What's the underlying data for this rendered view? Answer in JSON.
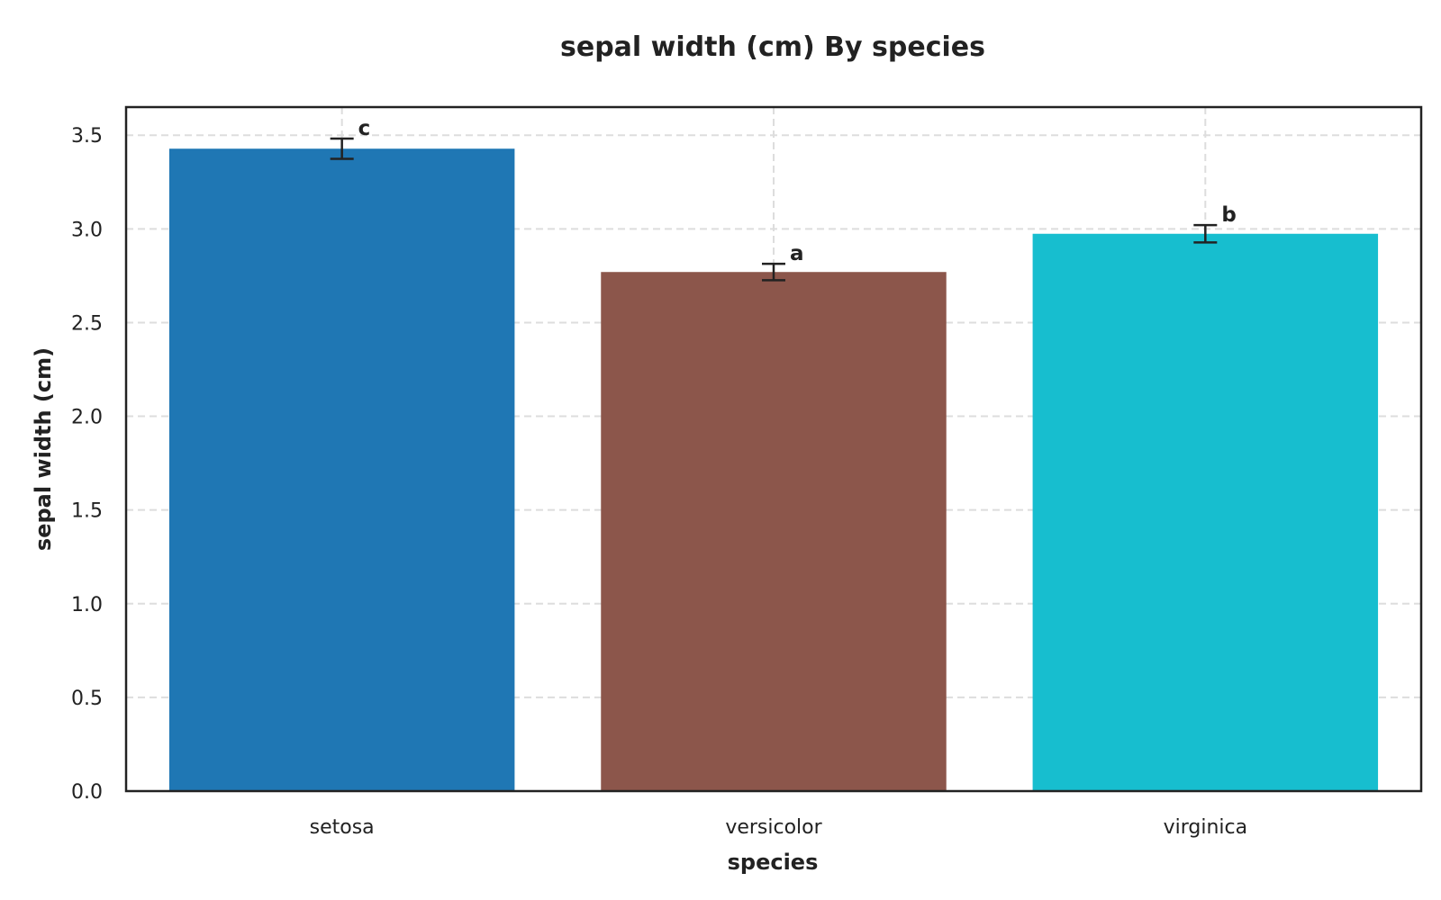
{
  "chart_data": {
    "type": "bar",
    "title": "sepal width (cm) By species",
    "xlabel": "species",
    "ylabel": "sepal width (cm)",
    "categories": [
      "setosa",
      "versicolor",
      "virginica"
    ],
    "values": [
      3.428,
      2.77,
      2.974
    ],
    "error": [
      0.054,
      0.044,
      0.046
    ],
    "significance_letters": [
      "c",
      "a",
      "b"
    ],
    "colors": [
      "#1f77b4",
      "#8c564b",
      "#17becf"
    ],
    "ylim": [
      0,
      3.65
    ],
    "yticks": [
      "0.0",
      "0.5",
      "1.0",
      "1.5",
      "2.0",
      "2.5",
      "3.0",
      "3.5"
    ],
    "grid": true
  }
}
